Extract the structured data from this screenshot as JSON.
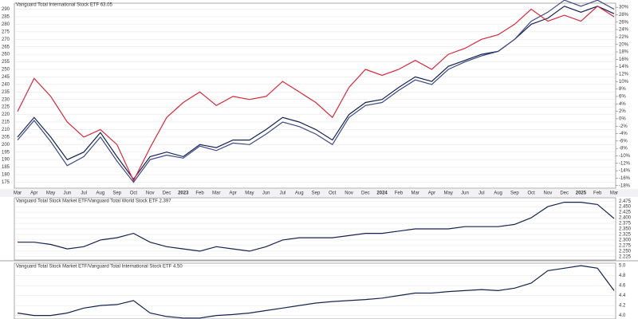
{
  "chart_data": [
    {
      "type": "line",
      "categories": [
        "Mar",
        "Apr",
        "May",
        "Jun",
        "Jul",
        "Aug",
        "Sep",
        "Oct",
        "Nov",
        "Dec",
        "2023",
        "Feb",
        "Mar",
        "Apr",
        "May",
        "Jun",
        "Jul",
        "Aug",
        "Sep",
        "Oct",
        "Nov",
        "Dec",
        "2024",
        "Feb",
        "Mar",
        "Apr",
        "May",
        "Jun",
        "Jul",
        "Aug",
        "Sep",
        "Oct",
        "Nov",
        "Dec",
        "2025",
        "Feb",
        "Mar"
      ],
      "series": [
        {
          "color": "#16234f",
          "values": [
            205,
            218,
            205,
            190,
            195,
            208,
            192,
            177,
            192,
            195,
            192,
            200,
            198,
            203,
            203,
            210,
            218,
            215,
            210,
            203,
            220,
            228,
            230,
            238,
            245,
            242,
            252,
            256,
            260,
            262,
            270,
            280,
            284,
            292,
            288,
            292,
            287
          ]
        },
        {
          "color": "#3c4a86",
          "values": [
            203,
            216,
            202,
            186,
            192,
            205,
            189,
            175,
            190,
            193,
            191,
            199,
            196,
            201,
            200,
            207,
            215,
            212,
            207,
            200,
            218,
            226,
            228,
            236,
            243,
            240,
            250,
            255,
            259,
            262,
            270,
            282,
            288,
            296,
            292,
            296,
            290
          ]
        },
        {
          "name": "Vanguard Total International Stock ETF 63.05",
          "color": "#d42a3c",
          "values": [
            222,
            244,
            232,
            215,
            205,
            210,
            200,
            176,
            198,
            218,
            228,
            235,
            226,
            232,
            230,
            232,
            242,
            235,
            228,
            218,
            238,
            250,
            246,
            250,
            256,
            250,
            260,
            264,
            270,
            273,
            280,
            290,
            282,
            286,
            282,
            292,
            285
          ]
        }
      ],
      "ylim": [
        171,
        294
      ],
      "yticks": [
        175,
        180,
        185,
        190,
        195,
        200,
        205,
        210,
        215,
        220,
        225,
        230,
        235,
        240,
        245,
        250,
        255,
        260,
        265,
        270,
        275,
        280,
        285,
        290
      ],
      "y2lim": [
        -18.7,
        31.1
      ],
      "y2ticks": [
        {
          "value": -18,
          "label": "-18%"
        },
        {
          "value": -16,
          "label": "-16%"
        },
        {
          "value": -14,
          "label": "-14%"
        },
        {
          "value": -12,
          "label": "-12%"
        },
        {
          "value": -10,
          "label": "-10%"
        },
        {
          "value": -8,
          "label": "-8%"
        },
        {
          "value": -6,
          "label": "-6%"
        },
        {
          "value": -4,
          "label": "-4%"
        },
        {
          "value": -2,
          "label": "-2%"
        },
        {
          "value": 0,
          "label": "0%"
        },
        {
          "value": 2,
          "label": "2%"
        },
        {
          "value": 4,
          "label": "4%"
        },
        {
          "value": 6,
          "label": "6%"
        },
        {
          "value": 8,
          "label": "8%"
        },
        {
          "value": 10,
          "label": "10%"
        },
        {
          "value": 12,
          "label": "12%"
        },
        {
          "value": 14,
          "label": "14%"
        },
        {
          "value": 16,
          "label": "16%"
        },
        {
          "value": 18,
          "label": "18%"
        },
        {
          "value": 20,
          "label": "20%"
        },
        {
          "value": 22,
          "label": "22%"
        },
        {
          "value": 24,
          "label": "24%"
        },
        {
          "value": 26,
          "label": "26%"
        },
        {
          "value": 28,
          "label": "28%"
        },
        {
          "value": 30,
          "label": "30%"
        }
      ]
    },
    {
      "type": "line",
      "title": "Vanguard Total Stock Market ETF/Vanguard Total World Stock ETF 2.397",
      "series": [
        {
          "color": "#16234f",
          "values": [
            2.29,
            2.29,
            2.28,
            2.26,
            2.27,
            2.3,
            2.31,
            2.33,
            2.29,
            2.27,
            2.26,
            2.25,
            2.27,
            2.26,
            2.25,
            2.27,
            2.3,
            2.31,
            2.31,
            2.31,
            2.32,
            2.33,
            2.33,
            2.34,
            2.35,
            2.35,
            2.35,
            2.36,
            2.36,
            2.36,
            2.37,
            2.4,
            2.45,
            2.47,
            2.47,
            2.46,
            2.397
          ]
        }
      ],
      "ylim": [
        2.21,
        2.49
      ],
      "yticks": [
        2.225,
        {
          "value": 2.25,
          "label": "2.250"
        },
        2.275,
        {
          "value": 2.3,
          "label": "2.300"
        },
        2.325,
        {
          "value": 2.35,
          "label": "2.350"
        },
        2.375,
        {
          "value": 2.4,
          "label": "2.400"
        },
        2.425,
        {
          "value": 2.45,
          "label": "2.450"
        },
        2.475
      ]
    },
    {
      "type": "line",
      "title": "Vanguard Total Stock Market ETF/Vanguard Total International Stock ETF 4.50",
      "series": [
        {
          "color": "#16234f",
          "values": [
            4.05,
            4.0,
            4.0,
            4.05,
            4.15,
            4.2,
            4.22,
            4.3,
            4.05,
            3.98,
            3.95,
            3.95,
            4.0,
            4.02,
            4.05,
            4.1,
            4.15,
            4.2,
            4.25,
            4.28,
            4.3,
            4.32,
            4.35,
            4.4,
            4.45,
            4.45,
            4.48,
            4.5,
            4.52,
            4.5,
            4.55,
            4.65,
            4.9,
            4.95,
            5.0,
            4.95,
            4.5
          ]
        }
      ],
      "ylim": [
        3.93,
        5.05
      ],
      "yticks": [
        {
          "value": 4.0,
          "label": "4.0"
        },
        4.2,
        4.4,
        4.6,
        4.8,
        {
          "value": 5.0,
          "label": "5.0"
        }
      ]
    }
  ]
}
